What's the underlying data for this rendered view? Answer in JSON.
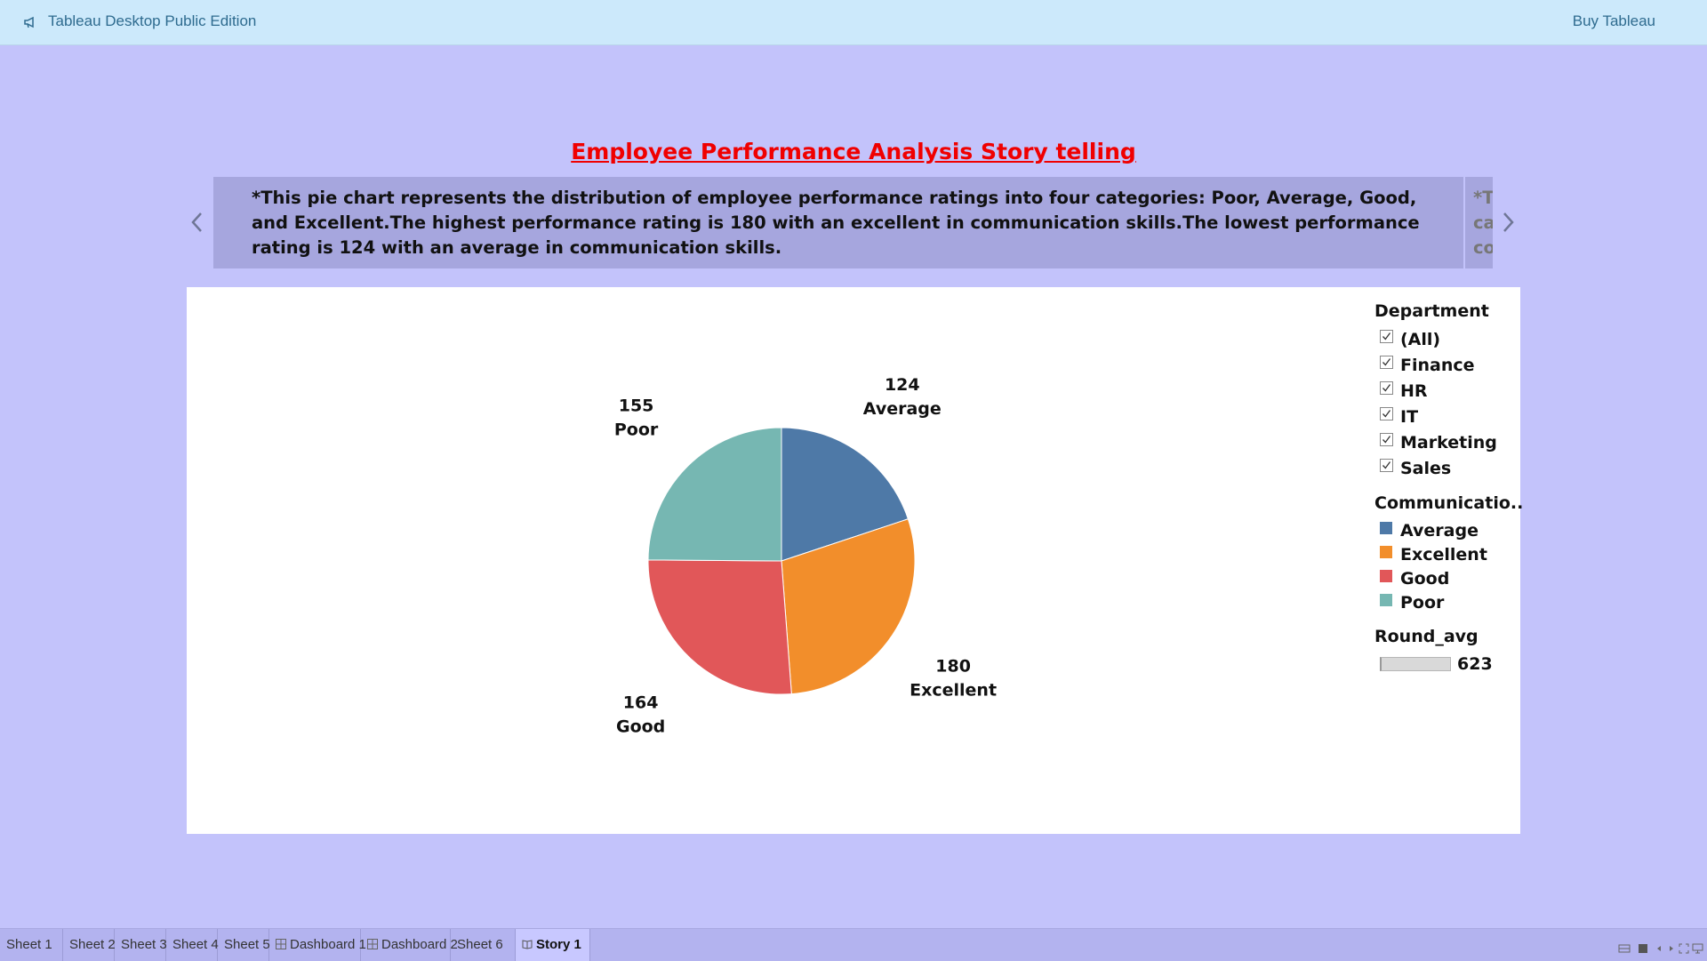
{
  "topbar": {
    "app_title": "Tableau Desktop Public Edition",
    "buy_label": "Buy Tableau",
    "logo_icon": "megaphone-icon"
  },
  "story": {
    "title": "Employee Performance Analysis Story telling",
    "caption": "*This pie chart represents the distribution of employee performance ratings into four categories: Poor, Average, Good, and Excellent.The highest performance rating is 180 with an excellent in communication skills.The lowest performance rating is 124 with an average in communication skills.",
    "next_caption_peek": [
      "*T",
      "ca",
      "co"
    ],
    "title_color": "#f00000"
  },
  "chart_data": {
    "type": "pie",
    "slices": [
      {
        "label": "Average",
        "value": 124,
        "color": "#4e79a7"
      },
      {
        "label": "Excellent",
        "value": 180,
        "color": "#f28e2b"
      },
      {
        "label": "Good",
        "value": 164,
        "color": "#e15759"
      },
      {
        "label": "Poor",
        "value": 155,
        "color": "#76b7b2"
      }
    ]
  },
  "legend": {
    "filter_title": "Department",
    "filter_items": [
      "(All)",
      "Finance",
      "HR",
      "IT",
      "Marketing",
      "Sales"
    ],
    "color_title": "Communicatio..",
    "color_items": [
      {
        "label": "Average",
        "color": "#4e79a7"
      },
      {
        "label": "Excellent",
        "color": "#f28e2b"
      },
      {
        "label": "Good",
        "color": "#e15759"
      },
      {
        "label": "Poor",
        "color": "#76b7b2"
      }
    ],
    "size_title": "Round_avg",
    "size_value": "623"
  },
  "tabs": [
    {
      "label": "Sheet 1",
      "icon": ""
    },
    {
      "label": "Sheet 2",
      "icon": ""
    },
    {
      "label": "Sheet 3",
      "icon": ""
    },
    {
      "label": "Sheet 4",
      "icon": ""
    },
    {
      "label": "Sheet 5",
      "icon": ""
    },
    {
      "label": "Dashboard 1",
      "icon": "dashboard-icon"
    },
    {
      "label": "Dashboard 2",
      "icon": "dashboard-icon"
    },
    {
      "label": "Sheet 6",
      "icon": ""
    },
    {
      "label": "Story 1",
      "icon": "story-icon",
      "active": true
    }
  ]
}
